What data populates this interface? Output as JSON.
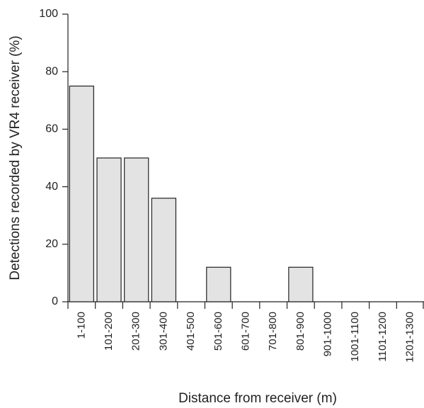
{
  "chart_data": {
    "type": "bar",
    "y_label": "Detections recorded by VR4 receiver (%)",
    "x_label": "Distance from receiver (m)",
    "categories": [
      "1-100",
      "101-200",
      "201-300",
      "301-400",
      "401-500",
      "501-600",
      "601-700",
      "701-800",
      "801-900",
      "901-1000",
      "1001-1100",
      "1101-1200",
      "1201-1300"
    ],
    "values": [
      75,
      50,
      50,
      36,
      0,
      12,
      0,
      0,
      12,
      0,
      0,
      0,
      0
    ],
    "color": "#e3e3e3",
    "ylim": [
      0,
      100
    ],
    "yticks": [
      0,
      20,
      40,
      60,
      80,
      100
    ],
    "grid": false
  }
}
